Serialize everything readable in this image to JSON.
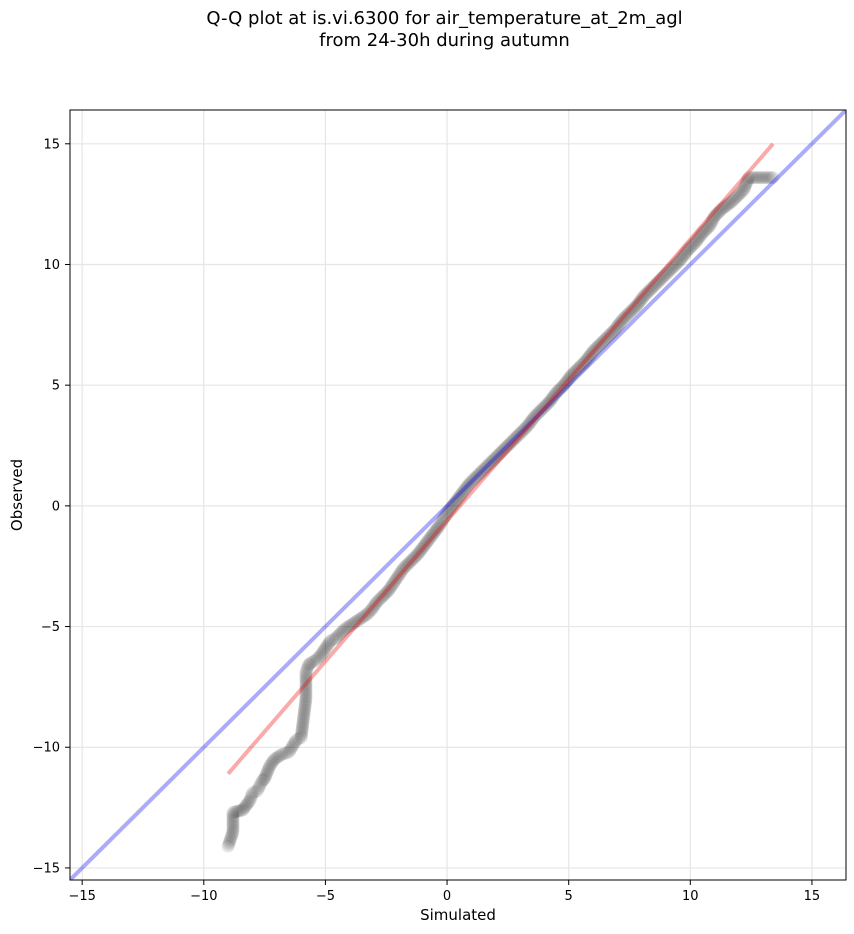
{
  "chart_data": {
    "type": "scatter",
    "title_lines": [
      "Q-Q plot at is.vi.6300 for air_temperature_at_2m_agl",
      "from 24-30h during autumn"
    ],
    "xlabel": "Simulated",
    "ylabel": "Observed",
    "xlim": [
      -15.5,
      16.4
    ],
    "ylim": [
      -15.5,
      16.4
    ],
    "xticks": [
      -15,
      -10,
      -5,
      0,
      5,
      10,
      15
    ],
    "yticks": [
      -15,
      -10,
      -5,
      0,
      5,
      10,
      15
    ],
    "xtick_labels": [
      "−15",
      "−10",
      "−5",
      "0",
      "5",
      "10",
      "15"
    ],
    "ytick_labels": [
      "−15",
      "−10",
      "−5",
      "0",
      "5",
      "10",
      "15"
    ],
    "grid": true,
    "colors": {
      "points": "#000000",
      "identity_line": "#0000ee",
      "fit_line": "#ee0000",
      "grid": "#e6e6e6"
    },
    "identity_line": [
      [
        -15.5,
        -15.5
      ],
      [
        16.4,
        16.4
      ]
    ],
    "fit_line": [
      [
        -9.0,
        -11.1
      ],
      [
        13.4,
        15.0
      ]
    ],
    "quantiles": [
      [
        -9.0,
        -14.1
      ],
      [
        -8.8,
        -13.5
      ],
      [
        -8.8,
        -12.7
      ],
      [
        -8.4,
        -12.6
      ],
      [
        -8.1,
        -12.2
      ],
      [
        -8.0,
        -11.9
      ],
      [
        -7.8,
        -11.8
      ],
      [
        -7.7,
        -11.6
      ],
      [
        -7.6,
        -11.4
      ],
      [
        -7.5,
        -11.3
      ],
      [
        -7.3,
        -10.8
      ],
      [
        -7.1,
        -10.5
      ],
      [
        -6.8,
        -10.3
      ],
      [
        -6.5,
        -10.2
      ],
      [
        -6.2,
        -9.7
      ],
      [
        -6.0,
        -9.6
      ],
      [
        -5.8,
        -8.0
      ],
      [
        -5.8,
        -6.9
      ],
      [
        -5.7,
        -6.6
      ],
      [
        -5.6,
        -6.5
      ],
      [
        -5.4,
        -6.4
      ],
      [
        -5.2,
        -6.2
      ],
      [
        -5.0,
        -5.9
      ],
      [
        -4.8,
        -5.6
      ],
      [
        -4.6,
        -5.5
      ],
      [
        -4.4,
        -5.3
      ],
      [
        -4.2,
        -5.1
      ],
      [
        -3.9,
        -4.9
      ],
      [
        -3.6,
        -4.7
      ],
      [
        -3.3,
        -4.5
      ],
      [
        -3.1,
        -4.3
      ],
      [
        -2.9,
        -4.0
      ],
      [
        -2.7,
        -3.8
      ],
      [
        -2.4,
        -3.5
      ],
      [
        -2.2,
        -3.2
      ],
      [
        -2.0,
        -2.9
      ],
      [
        -1.8,
        -2.6
      ],
      [
        -1.5,
        -2.3
      ],
      [
        -1.2,
        -2.0
      ],
      [
        -0.9,
        -1.6
      ],
      [
        -0.6,
        -1.2
      ],
      [
        -0.3,
        -0.8
      ],
      [
        0.0,
        -0.3
      ],
      [
        0.3,
        0.1
      ],
      [
        0.6,
        0.5
      ],
      [
        0.9,
        0.9
      ],
      [
        1.2,
        1.2
      ],
      [
        1.5,
        1.5
      ],
      [
        1.8,
        1.8
      ],
      [
        2.1,
        2.1
      ],
      [
        2.4,
        2.4
      ],
      [
        2.7,
        2.7
      ],
      [
        3.0,
        3.0
      ],
      [
        3.3,
        3.3
      ],
      [
        3.6,
        3.7
      ],
      [
        3.9,
        4.0
      ],
      [
        4.2,
        4.3
      ],
      [
        4.5,
        4.7
      ],
      [
        4.8,
        5.0
      ],
      [
        5.1,
        5.4
      ],
      [
        5.4,
        5.7
      ],
      [
        5.7,
        6.0
      ],
      [
        6.0,
        6.4
      ],
      [
        6.3,
        6.7
      ],
      [
        6.6,
        7.0
      ],
      [
        6.9,
        7.3
      ],
      [
        7.2,
        7.7
      ],
      [
        7.5,
        8.0
      ],
      [
        7.8,
        8.3
      ],
      [
        8.1,
        8.7
      ],
      [
        8.4,
        9.0
      ],
      [
        8.7,
        9.3
      ],
      [
        9.0,
        9.6
      ],
      [
        9.3,
        9.9
      ],
      [
        9.6,
        10.2
      ],
      [
        9.9,
        10.6
      ],
      [
        10.2,
        10.9
      ],
      [
        10.5,
        11.3
      ],
      [
        10.8,
        11.6
      ],
      [
        11.0,
        12.0
      ],
      [
        11.3,
        12.3
      ],
      [
        11.7,
        12.6
      ],
      [
        12.2,
        13.1
      ],
      [
        12.4,
        13.6
      ],
      [
        13.4,
        13.6
      ]
    ]
  }
}
